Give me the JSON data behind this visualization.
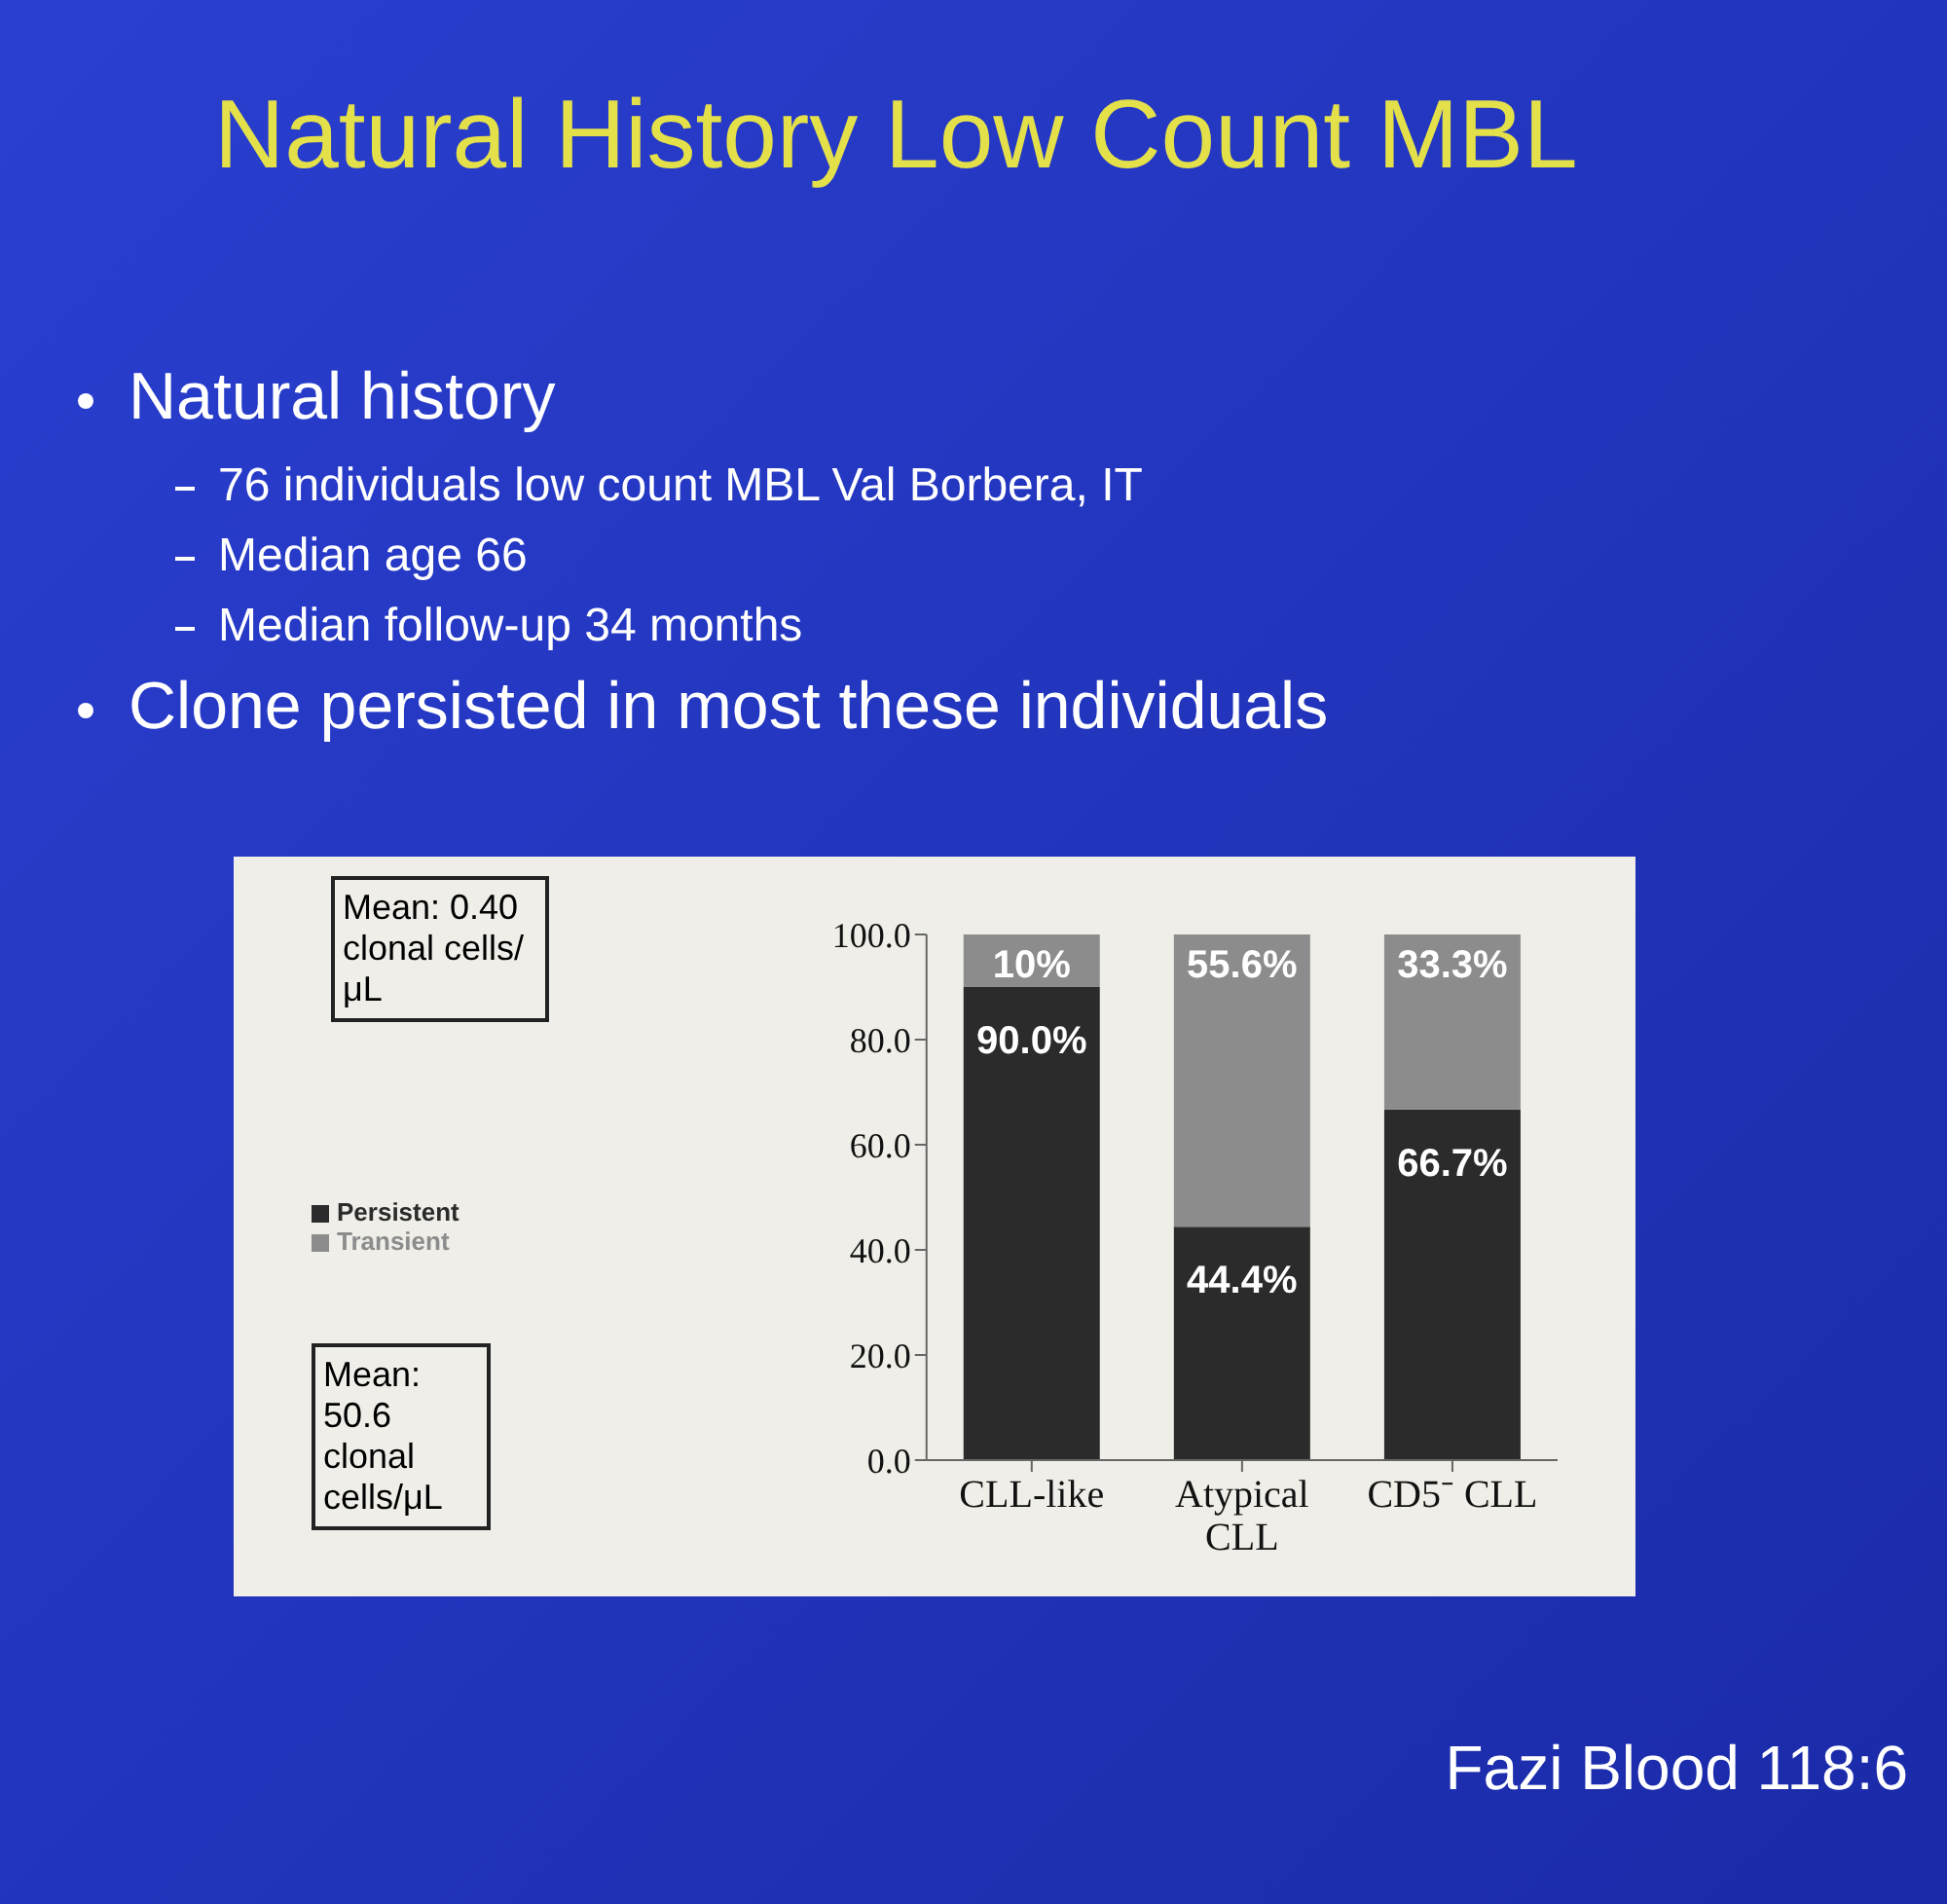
{
  "chart_data": {
    "type": "bar",
    "title": "Natural History Low Count MBL",
    "annotations": [
      "Natural history",
      "76 individuals low count MBL Val Borbera, IT",
      "Median age 66",
      "Median follow-up 34 months",
      "Clone persisted in most these individuals",
      "Mean: 0.40 clonal cells/μL",
      "Mean: 50.6 clonal cells/μL",
      "Fazi Blood 118:6"
    ],
    "categories": [
      "CLL-like",
      "Atypical CLL",
      "CD5⁻ CLL"
    ],
    "stacked": true,
    "series": [
      {
        "name": "Persistent",
        "color": "#2b2b2b",
        "values": [
          90.0,
          44.4,
          66.7
        ],
        "value_labels": [
          "90.0%",
          "44.4%",
          "66.7%"
        ]
      },
      {
        "name": "Transient",
        "color": "#8c8c8c",
        "values": [
          10,
          55.6,
          33.3
        ],
        "value_labels": [
          "10%",
          "55.6%",
          "33.3%"
        ]
      }
    ],
    "ylim": [
      0,
      100
    ],
    "yticks": [
      {
        "value": 0,
        "label": "0.0"
      },
      {
        "value": 20,
        "label": "20.0"
      },
      {
        "value": 40,
        "label": "40.0"
      },
      {
        "value": 60,
        "label": "60.0"
      },
      {
        "value": 80,
        "label": "80.0"
      },
      {
        "value": 100,
        "label": "100.0"
      }
    ],
    "grid": false,
    "legend": "left"
  }
}
